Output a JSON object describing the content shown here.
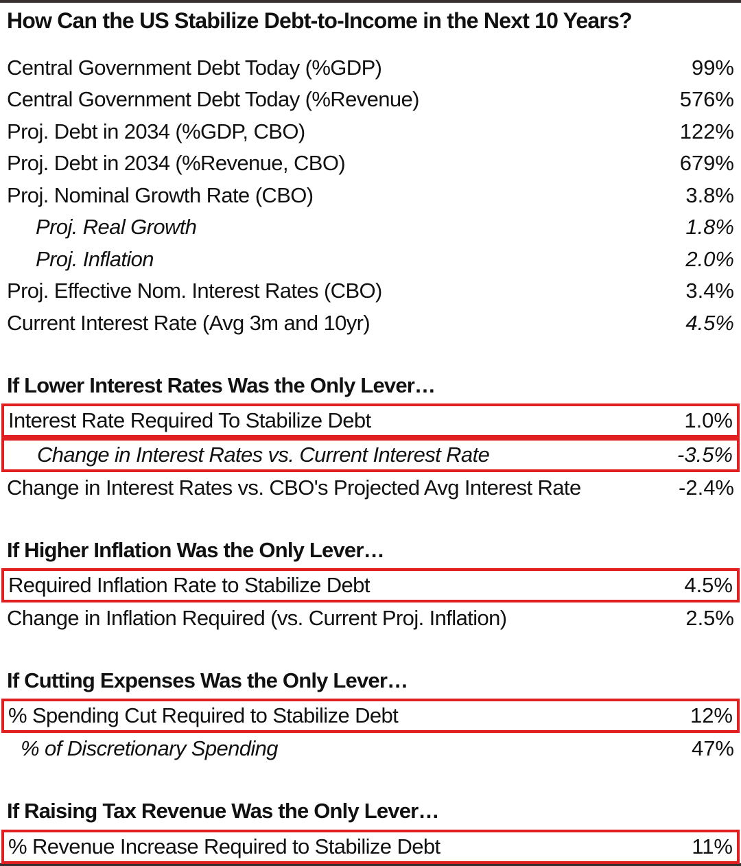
{
  "title": "How Can the US Stabilize Debt-to-Income in the Next 10 Years?",
  "baseline": [
    {
      "label": "Central Government Debt Today (%GDP)",
      "value": "99%"
    },
    {
      "label": "Central Government Debt Today (%Revenue)",
      "value": "576%"
    },
    {
      "label": "Proj. Debt in 2034 (%GDP, CBO)",
      "value": "122%"
    },
    {
      "label": "Proj. Debt in 2034 (%Revenue, CBO)",
      "value": "679%"
    },
    {
      "label": "Proj. Nominal Growth Rate (CBO)",
      "value": "3.8%"
    },
    {
      "label": "Proj. Real Growth",
      "value": "1.8%"
    },
    {
      "label": "Proj. Inflation",
      "value": "2.0%"
    },
    {
      "label": "Proj. Effective Nom. Interest Rates (CBO)",
      "value": "3.4%"
    },
    {
      "label": "Current Interest Rate (Avg 3m and 10yr)",
      "value": "4.5%"
    }
  ],
  "interest": {
    "heading": "If Lower Interest Rates Was the Only Lever…",
    "rows": [
      {
        "label": "Interest Rate Required To Stabilize Debt",
        "value": "1.0%"
      },
      {
        "label": "Change in Interest Rates vs. Current Interest Rate",
        "value": "-3.5%"
      },
      {
        "label": "Change in Interest Rates vs. CBO's Projected Avg Interest Rate",
        "value": "-2.4%"
      }
    ]
  },
  "inflation": {
    "heading": "If Higher Inflation Was the Only Lever…",
    "rows": [
      {
        "label": "Required Inflation Rate to Stabilize Debt",
        "value": "4.5%"
      },
      {
        "label": "Change in Inflation Required (vs. Current Proj. Inflation)",
        "value": "2.5%"
      }
    ]
  },
  "expenses": {
    "heading": "If Cutting Expenses Was the Only Lever…",
    "rows": [
      {
        "label": "% Spending Cut Required to Stabilize Debt",
        "value": "12%"
      },
      {
        "label": "% of Discretionary Spending",
        "value": "47%"
      }
    ]
  },
  "tax": {
    "heading": "If Raising Tax Revenue Was the Only Lever…",
    "rows": [
      {
        "label": "% Revenue Increase Required to Stabilize Debt",
        "value": "11%"
      }
    ]
  },
  "colors": {
    "highlight_border": "#e02020",
    "frame_border": "#3a2f2f",
    "text": "#111111"
  }
}
